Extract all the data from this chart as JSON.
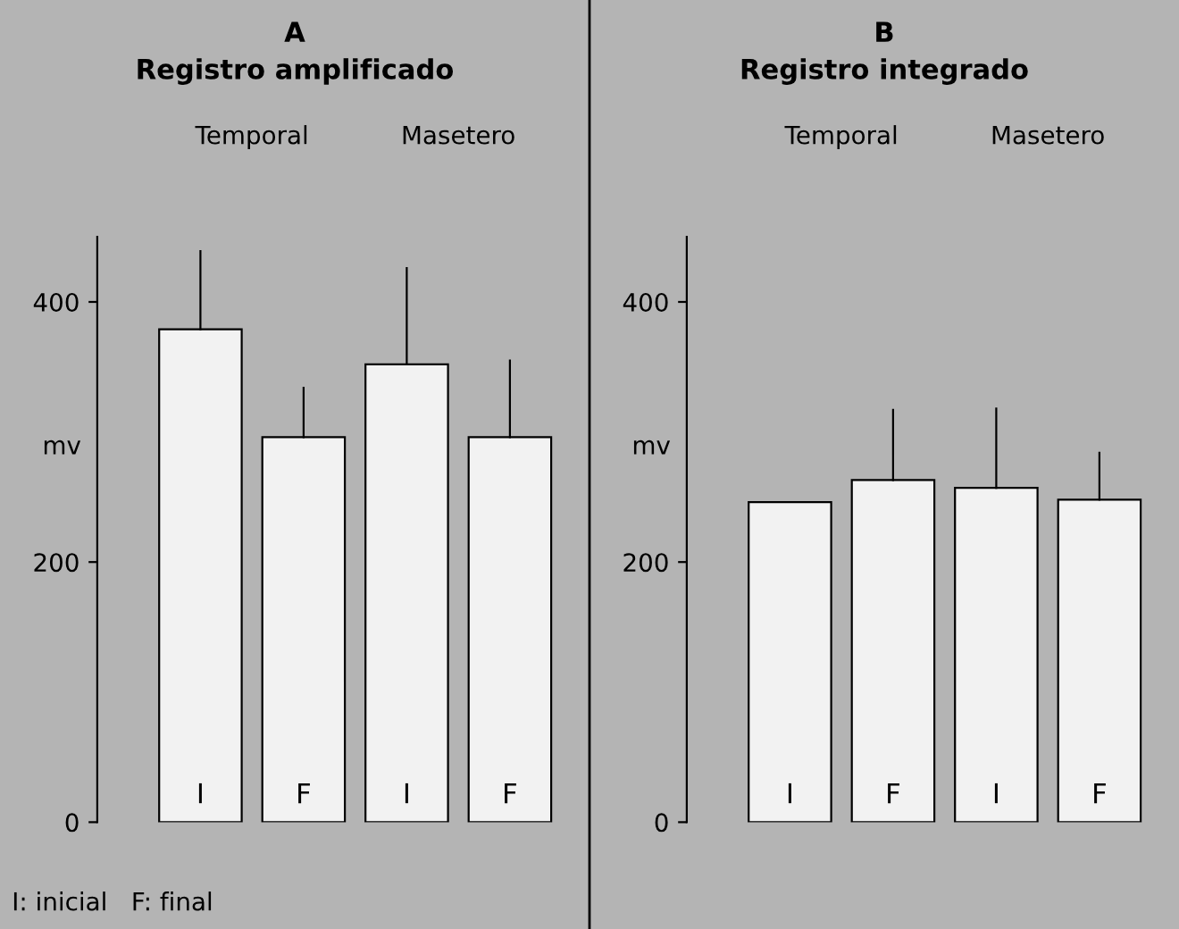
{
  "chart_data": [
    {
      "type": "bar",
      "title": "A",
      "subtitle": "Registro amplificado",
      "ylabel": "mv",
      "categories": [
        "I",
        "F",
        "I",
        "F"
      ],
      "values": [
        379,
        296,
        352,
        296
      ],
      "errors": [
        [
          379,
          439
        ],
        [
          296,
          334
        ],
        [
          352,
          426
        ],
        [
          296,
          355
        ]
      ],
      "color": "#f2f2f2",
      "ylim": [
        0,
        450
      ],
      "yticks": [
        0,
        200,
        400
      ],
      "grid": false,
      "annotations": [
        "Temporal",
        "Masetero",
        "I: inicial   F: final"
      ]
    },
    {
      "type": "bar",
      "title": "B",
      "subtitle": "Registro integrado",
      "ylabel": "mv",
      "categories": [
        "I",
        "F",
        "I",
        "F"
      ],
      "values": [
        246,
        263,
        257,
        248
      ],
      "errors": [
        null,
        [
          263,
          317
        ],
        [
          257,
          318
        ],
        [
          248,
          284
        ]
      ],
      "color": "#f2f2f2",
      "ylim": [
        0,
        450
      ],
      "yticks": [
        0,
        200,
        400
      ],
      "grid": false,
      "annotations": [
        "Temporal",
        "Masetero"
      ]
    }
  ]
}
